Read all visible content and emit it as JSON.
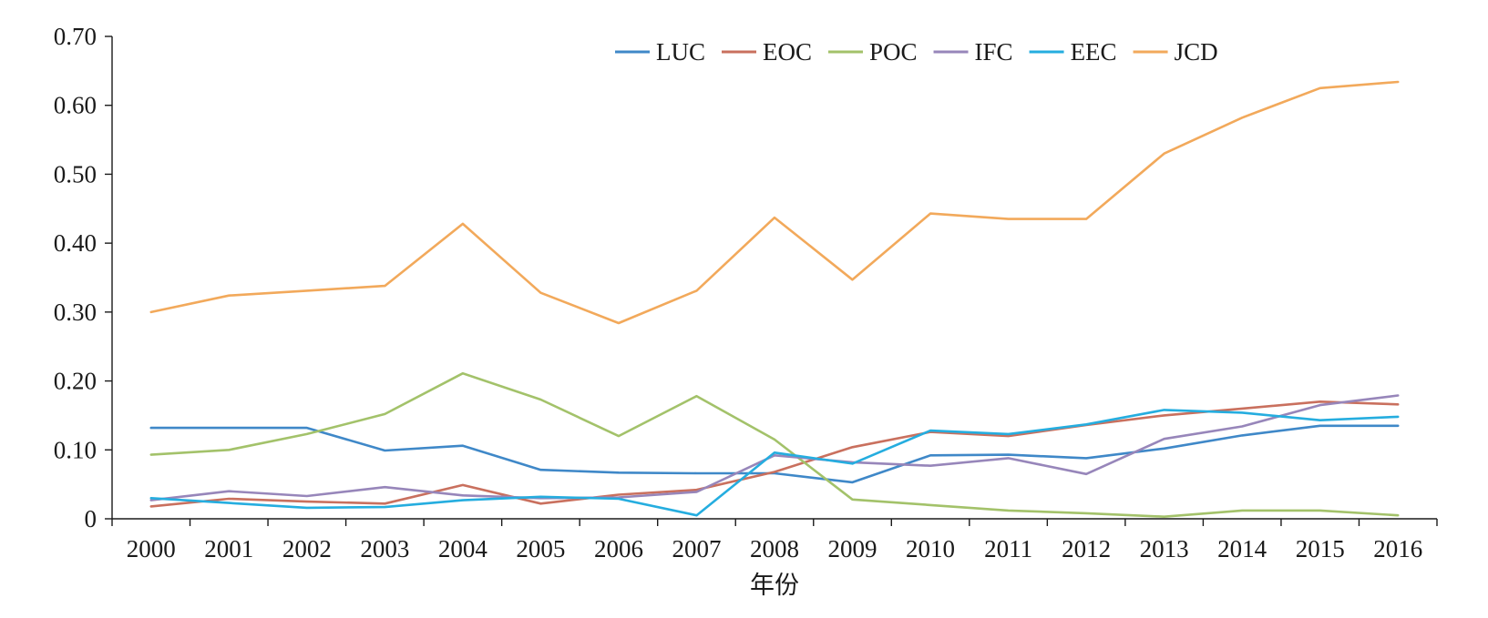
{
  "chart_data": {
    "type": "line",
    "title": "",
    "xlabel": "年份",
    "ylabel": "",
    "x": [
      "2000",
      "2001",
      "2002",
      "2003",
      "2004",
      "2005",
      "2006",
      "2007",
      "2008",
      "2009",
      "2010",
      "2011",
      "2012",
      "2013",
      "2014",
      "2015",
      "2016"
    ],
    "y_ticks": [
      "0",
      "0.10",
      "0.20",
      "0.30",
      "0.40",
      "0.50",
      "0.60",
      "0.70"
    ],
    "ylim": [
      0,
      0.7
    ],
    "grid": false,
    "legend_position": "top",
    "series": [
      {
        "name": "LUC",
        "color": "#3f88c8",
        "values": [
          0.132,
          0.132,
          0.132,
          0.099,
          0.106,
          0.071,
          0.067,
          0.066,
          0.066,
          0.053,
          0.092,
          0.093,
          0.088,
          0.102,
          0.121,
          0.135,
          0.135
        ]
      },
      {
        "name": "EOC",
        "color": "#c9705e",
        "values": [
          0.018,
          0.029,
          0.025,
          0.022,
          0.049,
          0.022,
          0.035,
          0.042,
          0.068,
          0.104,
          0.126,
          0.12,
          0.136,
          0.15,
          0.16,
          0.17,
          0.166
        ]
      },
      {
        "name": "POC",
        "color": "#a3c26a",
        "values": [
          0.093,
          0.1,
          0.123,
          0.152,
          0.211,
          0.173,
          0.12,
          0.178,
          0.115,
          0.028,
          0.02,
          0.012,
          0.008,
          0.003,
          0.012,
          0.012,
          0.005
        ]
      },
      {
        "name": "IFC",
        "color": "#9786ba",
        "values": [
          0.027,
          0.04,
          0.033,
          0.046,
          0.034,
          0.03,
          0.031,
          0.039,
          0.092,
          0.082,
          0.077,
          0.088,
          0.065,
          0.116,
          0.134,
          0.165,
          0.179
        ]
      },
      {
        "name": "EEC",
        "color": "#25addf",
        "values": [
          0.03,
          0.023,
          0.016,
          0.017,
          0.027,
          0.032,
          0.029,
          0.005,
          0.096,
          0.08,
          0.128,
          0.123,
          0.137,
          0.158,
          0.154,
          0.143,
          0.148
        ]
      },
      {
        "name": "JCD",
        "color": "#f2a95b",
        "values": [
          0.3,
          0.324,
          0.331,
          0.338,
          0.428,
          0.328,
          0.284,
          0.331,
          0.437,
          0.347,
          0.443,
          0.435,
          0.435,
          0.53,
          0.582,
          0.625,
          0.634
        ]
      }
    ]
  }
}
